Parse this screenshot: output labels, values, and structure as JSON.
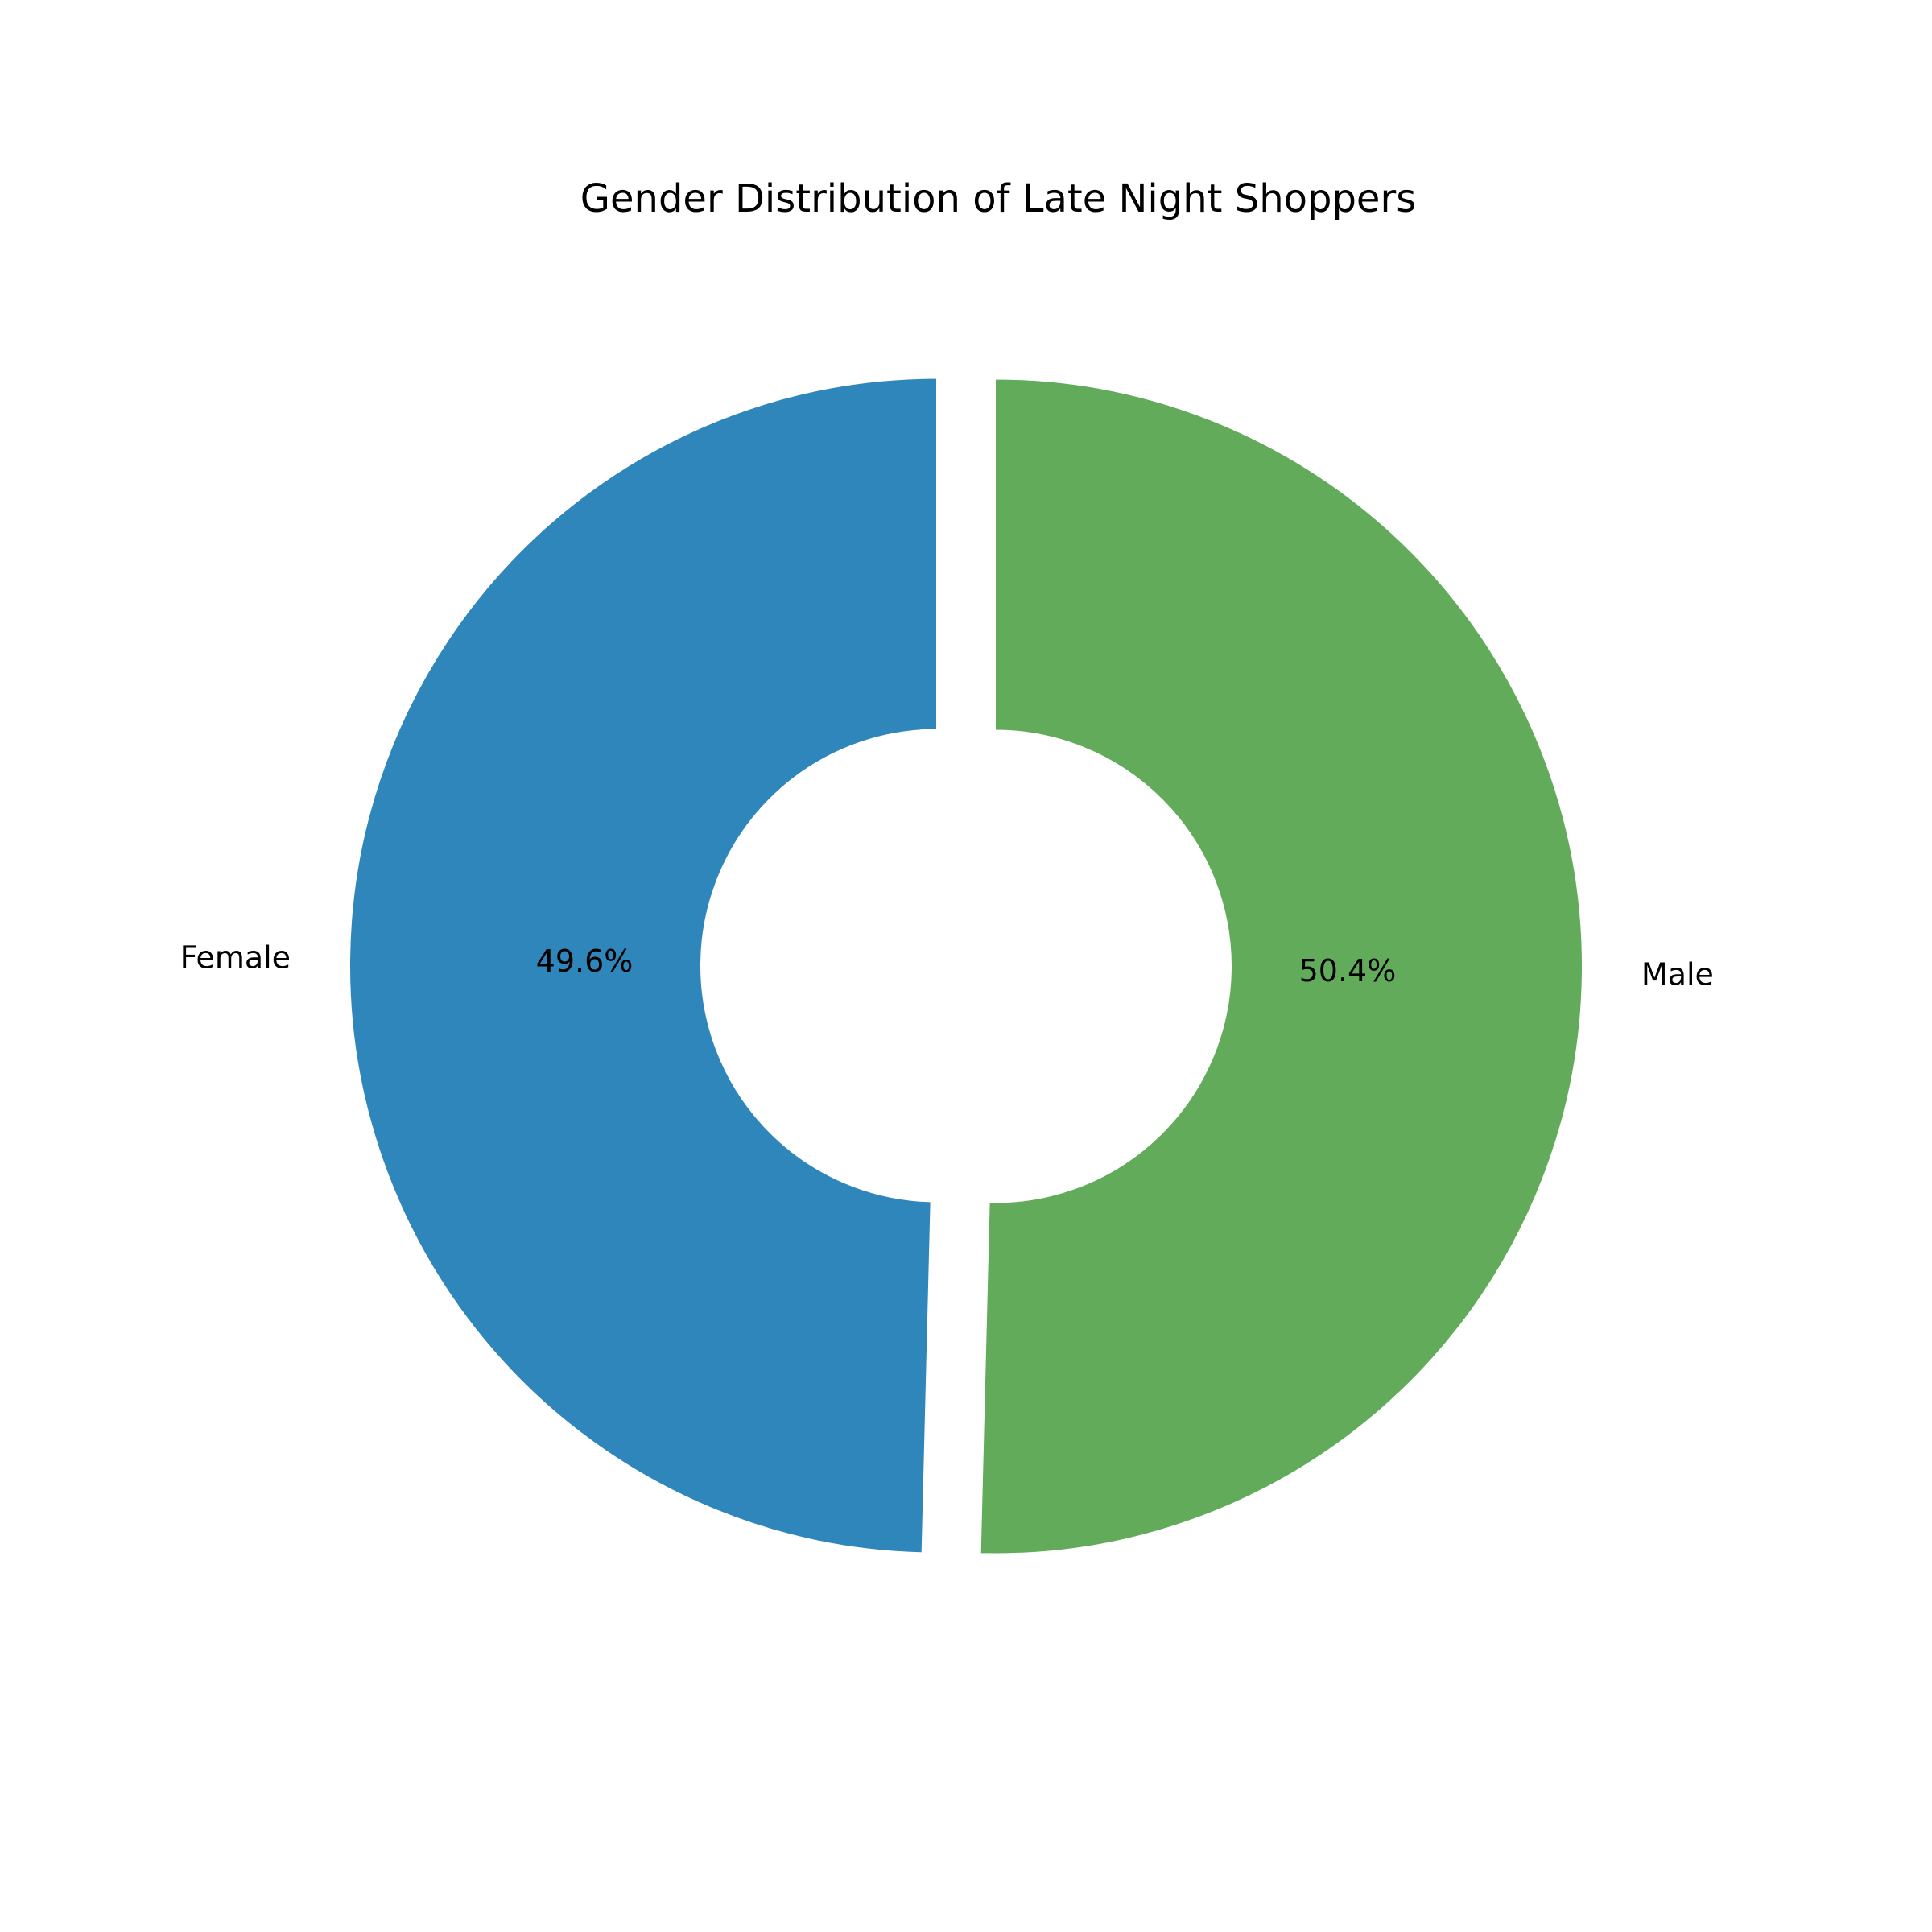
{
  "chart_data": {
    "type": "pie",
    "title": "Gender Distribution of Late Night Shoppers",
    "categories": [
      "Female",
      "Male"
    ],
    "values": [
      49.6,
      50.4
    ],
    "value_labels": [
      "49.6%",
      "50.4%"
    ],
    "colors": [
      "#2e86bb",
      "#62ab5b"
    ],
    "donut": true,
    "exploded": true,
    "legend": "none"
  }
}
